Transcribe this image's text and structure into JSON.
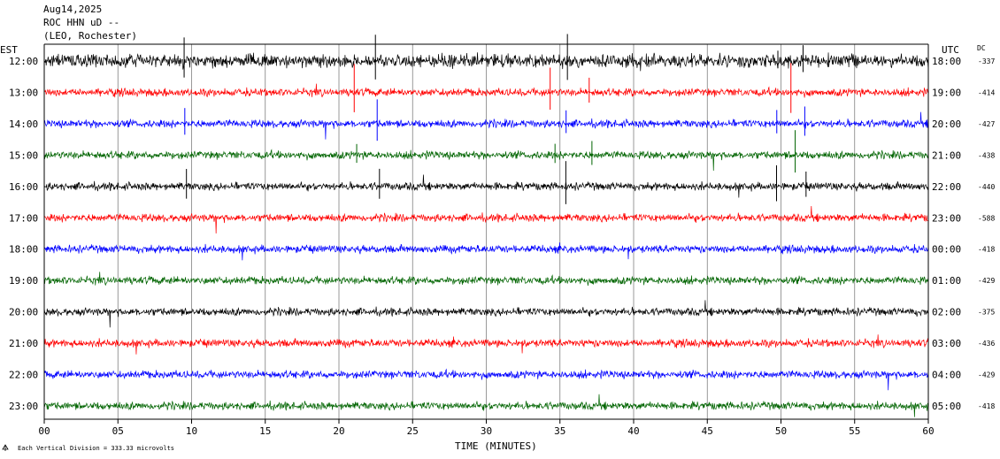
{
  "header": {
    "line1": "Aug14,2025",
    "line2": "ROC HHN uD --",
    "line3": "(LEO, Rochester)"
  },
  "left_zone_label": "EST",
  "right_zone_label": "UTC",
  "dc_header": "DC",
  "footer_note": "Each Vertical Division =  333.33 microvolts",
  "footer_icon": "small-logo-icon",
  "chart_data": {
    "type": "seismogram-helicorder",
    "xlabel": "TIME (MINUTES)",
    "x_ticks": [
      "00",
      "05",
      "10",
      "15",
      "20",
      "25",
      "30",
      "35",
      "40",
      "45",
      "50",
      "55",
      "60"
    ],
    "xlim": [
      0,
      60
    ],
    "trace_colors": [
      "#000000",
      "#ff0000",
      "#0000ff",
      "#006400"
    ],
    "rows": [
      {
        "est": "12:00",
        "utc": "18:00",
        "dc": "-337"
      },
      {
        "est": "13:00",
        "utc": "19:00",
        "dc": "-414"
      },
      {
        "est": "14:00",
        "utc": "20:00",
        "dc": "-427"
      },
      {
        "est": "15:00",
        "utc": "21:00",
        "dc": "-438"
      },
      {
        "est": "16:00",
        "utc": "22:00",
        "dc": "-440"
      },
      {
        "est": "17:00",
        "utc": "23:00",
        "dc": "-588"
      },
      {
        "est": "18:00",
        "utc": "00:00",
        "dc": "-418"
      },
      {
        "est": "19:00",
        "utc": "01:00",
        "dc": "-429"
      },
      {
        "est": "20:00",
        "utc": "02:00",
        "dc": "-375"
      },
      {
        "est": "21:00",
        "utc": "03:00",
        "dc": "-436"
      },
      {
        "est": "22:00",
        "utc": "04:00",
        "dc": "-429"
      },
      {
        "est": "23:00",
        "utc": "05:00",
        "dc": "-418"
      }
    ],
    "grid": true
  }
}
